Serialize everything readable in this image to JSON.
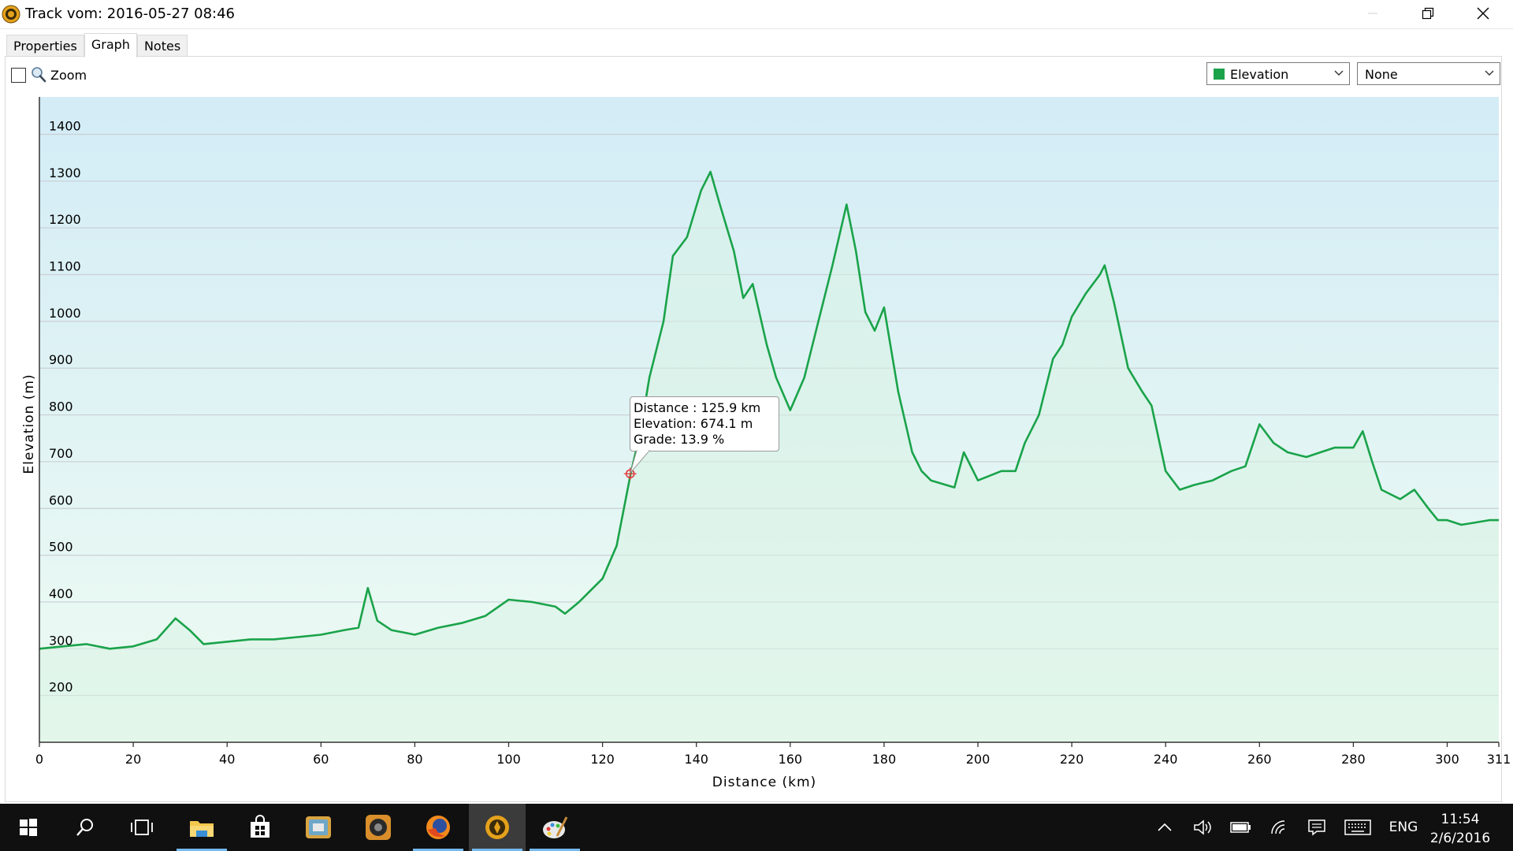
{
  "window": {
    "title": "Track vom: 2016-05-27 08:46",
    "app_icon": "gpsbabel-compass-icon",
    "controls": [
      "minimize-icon",
      "restore-icon",
      "close-icon"
    ]
  },
  "tabs": [
    {
      "label": "Properties",
      "active": false
    },
    {
      "label": "Graph",
      "active": true
    },
    {
      "label": "Notes",
      "active": false
    }
  ],
  "toolbar": {
    "zoom_label": "Zoom",
    "zoom_checked": false,
    "primary_select": {
      "value": "Elevation",
      "swatch_color": "#1aa34a"
    },
    "secondary_select": {
      "value": "None"
    }
  },
  "tooltip": {
    "distance": "Distance : 125.9 km",
    "elevation": "Elevation: 674.1 m",
    "grade": "Grade: 13.9 %"
  },
  "chart_data": {
    "type": "area",
    "title": "",
    "xlabel": "Distance (km)",
    "ylabel": "Elevation (m)",
    "xlim": [
      0,
      311
    ],
    "ylim": [
      100,
      1480
    ],
    "x_ticks": [
      0,
      20,
      40,
      60,
      80,
      100,
      120,
      140,
      160,
      180,
      200,
      220,
      240,
      260,
      280,
      300,
      311
    ],
    "y_ticks": [
      200,
      300,
      400,
      500,
      600,
      700,
      800,
      900,
      1000,
      1100,
      1200,
      1300,
      1400
    ],
    "grid": true,
    "line_color": "#1aa34a",
    "fill_color": "#d8f3e3",
    "background_gradient": [
      "#d3ecf6",
      "#eefbf2"
    ],
    "marker": {
      "x": 125.9,
      "y": 674.1
    },
    "series": [
      {
        "x": [
          0,
          5,
          10,
          15,
          20,
          25,
          29,
          32,
          35,
          40,
          45,
          50,
          55,
          60,
          65,
          68,
          70,
          72,
          75,
          80,
          85,
          90,
          95,
          100,
          105,
          110,
          112,
          115,
          120,
          123,
          126,
          128,
          130,
          133,
          135,
          138,
          141,
          143,
          145,
          148,
          150,
          152,
          155,
          157,
          160,
          163,
          166,
          169,
          172,
          174,
          176,
          178,
          180,
          183,
          186,
          188,
          190,
          195,
          197,
          200,
          205,
          208,
          210,
          213,
          216,
          218,
          220,
          223,
          226,
          227,
          229,
          232,
          235,
          237,
          240,
          243,
          246,
          250,
          254,
          257,
          260,
          263,
          266,
          270,
          273,
          276,
          280,
          282,
          284,
          286,
          288,
          290,
          293,
          296,
          298,
          300,
          303,
          306,
          309,
          311
        ],
        "y": [
          300,
          305,
          310,
          300,
          305,
          320,
          365,
          340,
          310,
          315,
          320,
          320,
          325,
          330,
          340,
          345,
          430,
          360,
          340,
          330,
          345,
          355,
          370,
          405,
          400,
          390,
          375,
          400,
          450,
          520,
          674,
          760,
          880,
          1000,
          1140,
          1180,
          1280,
          1320,
          1250,
          1150,
          1050,
          1080,
          950,
          880,
          810,
          880,
          1000,
          1120,
          1250,
          1150,
          1020,
          980,
          1030,
          850,
          720,
          680,
          660,
          645,
          720,
          660,
          680,
          680,
          740,
          800,
          920,
          950,
          1010,
          1060,
          1100,
          1120,
          1040,
          900,
          850,
          820,
          680,
          640,
          650,
          660,
          680,
          690,
          780,
          740,
          720,
          710,
          720,
          730,
          730,
          765,
          700,
          640,
          630,
          620,
          640,
          600,
          575,
          575,
          565,
          570,
          575,
          575
        ]
      }
    ]
  },
  "taskbar": {
    "apps": [
      {
        "icon": "windows-start-icon",
        "running": false
      },
      {
        "icon": "search-icon",
        "running": false
      },
      {
        "icon": "task-view-icon",
        "running": false
      },
      {
        "icon": "file-explorer-icon",
        "running": true
      },
      {
        "icon": "store-icon",
        "running": false
      },
      {
        "icon": "document-viewer-icon",
        "running": false
      },
      {
        "icon": "media-player-icon",
        "running": false
      },
      {
        "icon": "firefox-icon",
        "running": true
      },
      {
        "icon": "gpsbabel-compass-icon",
        "running": true,
        "active": true
      },
      {
        "icon": "paint-icon",
        "running": true
      }
    ],
    "tray_icons": [
      "chevron-up-icon",
      "volume-icon",
      "battery-icon",
      "wifi-icon",
      "notifications-icon",
      "keyboard-icon"
    ],
    "language": "ENG",
    "time": "11:54",
    "date": "2/6/2016"
  }
}
